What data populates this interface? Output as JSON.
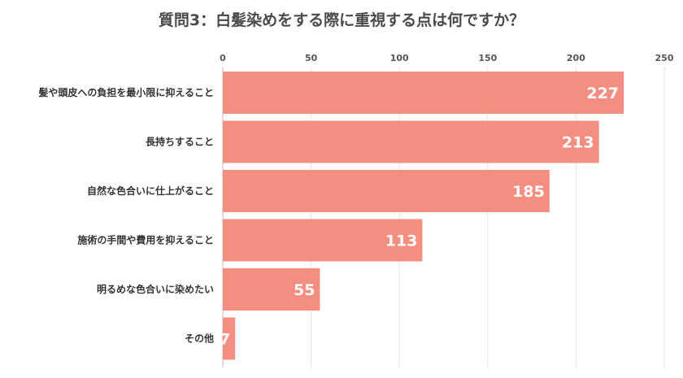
{
  "chart_data": {
    "type": "bar",
    "orientation": "horizontal",
    "title": "質問3：白髪染めをする際に重視する点は何ですか？",
    "categories": [
      "髪や頭皮への負担を最小限に抑えること",
      "長持ちすること",
      "自然な色合いに仕上がること",
      "施術の手間や費用を抑えること",
      "明るめな色合いに染めたい",
      "その他"
    ],
    "values": [
      227,
      213,
      185,
      113,
      55,
      7
    ],
    "xlim": [
      0,
      250
    ],
    "xticks": [
      0,
      50,
      100,
      150,
      200,
      250
    ],
    "axis_position": "top",
    "grid": true,
    "legend": "none",
    "bar_color": "#f48e80",
    "label_color": "#ffffff"
  }
}
